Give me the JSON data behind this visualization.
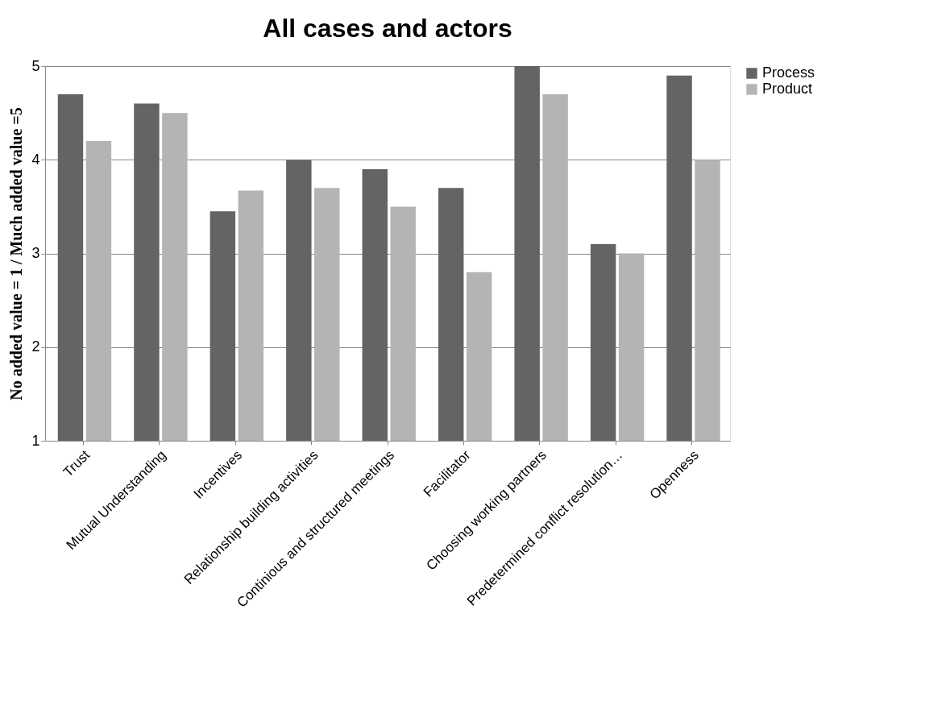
{
  "chart_data": {
    "type": "bar",
    "title": "All cases and actors",
    "ylabel": "No added value = 1 / Much added value =5",
    "categories": [
      "Trust",
      "Mutual Understanding",
      "Incentives",
      "Relationship building activities",
      "Continious and structured meetings",
      "Facilitator",
      "Choosing working partners",
      "Predetermined conflict resolution…",
      "Openness"
    ],
    "series": [
      {
        "name": "Process",
        "color": "#646464",
        "values": [
          4.7,
          4.6,
          3.45,
          4.0,
          3.9,
          3.7,
          5.0,
          3.1,
          4.9
        ]
      },
      {
        "name": "Product",
        "color": "#b4b4b4",
        "values": [
          4.2,
          4.5,
          3.67,
          3.7,
          3.5,
          2.8,
          4.7,
          3.0,
          4.0
        ]
      }
    ],
    "ylim": [
      1,
      5
    ],
    "yticks": [
      1,
      2,
      3,
      4,
      5
    ],
    "grid": "y",
    "legend": "right"
  }
}
